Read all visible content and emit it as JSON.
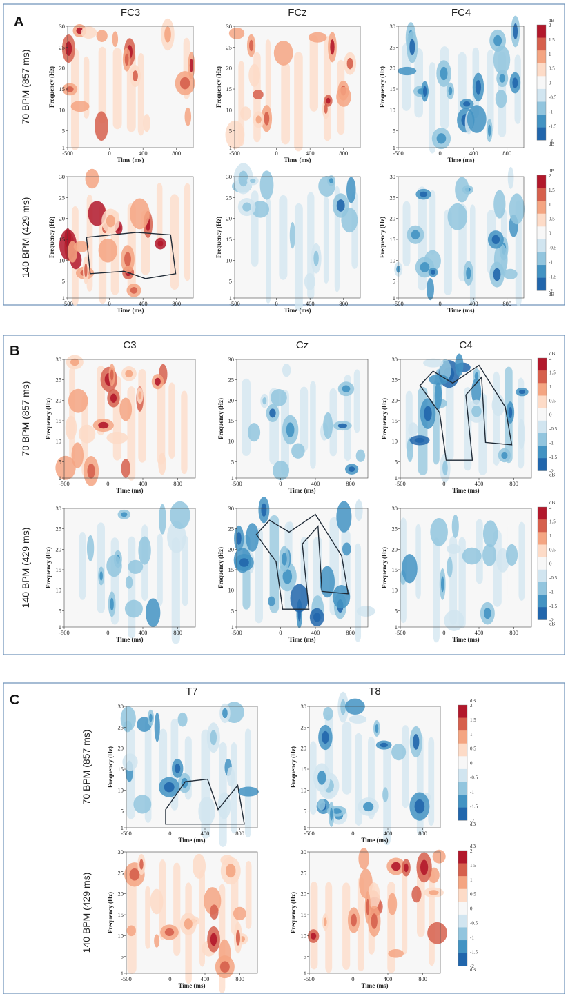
{
  "colors": {
    "frame": "#6a8fb8",
    "cluster_outline": "#1f2a36",
    "scale": [
      "#2166ac",
      "#4393c3",
      "#92c5de",
      "#d1e5f0",
      "#f7f7f7",
      "#fddbc7",
      "#f4a582",
      "#d6604d",
      "#b2182b"
    ]
  },
  "panels": [
    {
      "letter": "A",
      "channels": [
        "FC3",
        "FCz",
        "FC4"
      ],
      "rows": [
        {
          "label": "70 BPM (857 ms)",
          "maps": [
            "pos_weak",
            "pos_weak",
            "neg_mid"
          ]
        },
        {
          "label": "140 BPM (429 ms)",
          "maps": [
            "pos_strong_cluster",
            "neg_weak",
            "neg_mid"
          ]
        }
      ]
    },
    {
      "letter": "B",
      "channels": [
        "C3",
        "Cz",
        "C4"
      ],
      "rows": [
        {
          "label": "70 BPM (857 ms)",
          "maps": [
            "pos_mid",
            "neg_weak",
            "neg_strong_cluster"
          ]
        },
        {
          "label": "140 BPM (429 ms)",
          "maps": [
            "neg_weak",
            "neg_strong_cluster",
            "neg_weak"
          ]
        }
      ]
    },
    {
      "letter": "C",
      "channels": [
        "T7",
        "T8"
      ],
      "rows": [
        {
          "label": "70 BPM (857 ms)",
          "maps": [
            "neg_mid_cluster",
            "neg_mid"
          ]
        },
        {
          "label": "140 BPM (429 ms)",
          "maps": [
            "pos_mid",
            "pos_mid"
          ]
        }
      ]
    }
  ],
  "chart_data": {
    "type": "heatmap",
    "description_free": true,
    "xlabel": "Time (ms)",
    "ylabel": "Frequency (Hz)",
    "x_ticks": [
      "-500",
      "0",
      "400",
      "800"
    ],
    "y_ticks": [
      "1",
      "5",
      "10",
      "15",
      "20",
      "25",
      "30"
    ],
    "xlim": [
      -500,
      1000
    ],
    "ylim": [
      1,
      30
    ],
    "colorbar": {
      "unit": "dB",
      "ticks": [
        "2",
        "1.5",
        "1",
        "0.5",
        "0",
        "-0.5",
        "-1",
        "-1.5",
        "-2"
      ],
      "range": [
        -2,
        2
      ]
    }
  }
}
